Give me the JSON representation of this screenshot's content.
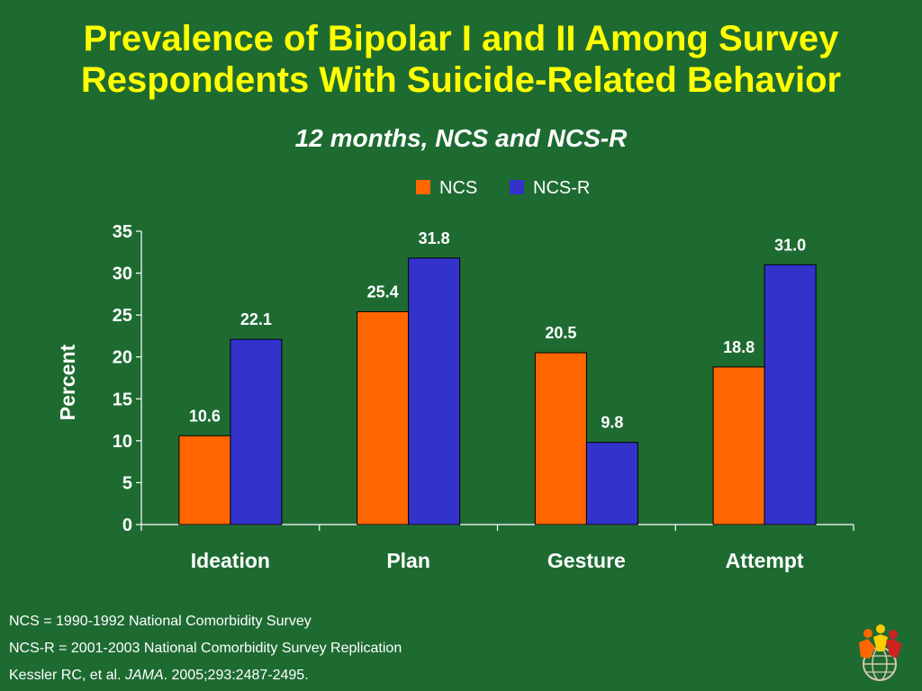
{
  "chart_data": {
    "type": "bar",
    "title": "Prevalence of Bipolar I and II Among Survey Respondents With Suicide-Related Behavior",
    "subtitle": "12 months, NCS and NCS-R",
    "categories": [
      "Ideation",
      "Plan",
      "Gesture",
      "Attempt"
    ],
    "series": [
      {
        "name": "NCS",
        "values": [
          10.6,
          25.4,
          20.5,
          18.8
        ],
        "color": "#ff6600",
        "labels": [
          "10.6",
          "25.4",
          "20.5",
          "18.8"
        ]
      },
      {
        "name": "NCS-R",
        "values": [
          22.1,
          31.8,
          9.8,
          31.0
        ],
        "color": "#3333cc",
        "labels": [
          "22.1",
          "31.8",
          "9.8",
          "31.0"
        ]
      }
    ],
    "xlabel": "",
    "ylabel": "Percent",
    "ylim": [
      0,
      35
    ],
    "yticks": [
      0,
      5,
      10,
      15,
      20,
      25,
      30,
      35
    ],
    "grid": false,
    "legend_position": "top-center"
  },
  "footer": {
    "line1": "NCS = 1990-1992 National Comorbidity Survey",
    "line2": "NCS-R = 2001-2003 National Comorbidity Survey Replication",
    "citation_pre": "Kessler RC, et al. ",
    "citation_journal": "JAMA",
    "citation_post": ". 2005;293:2487-2495."
  },
  "colors": {
    "background": "#1e6b32",
    "title": "#ffff00",
    "text": "#ffffff"
  },
  "logo": {
    "icon": "people-globe-logo-icon"
  }
}
